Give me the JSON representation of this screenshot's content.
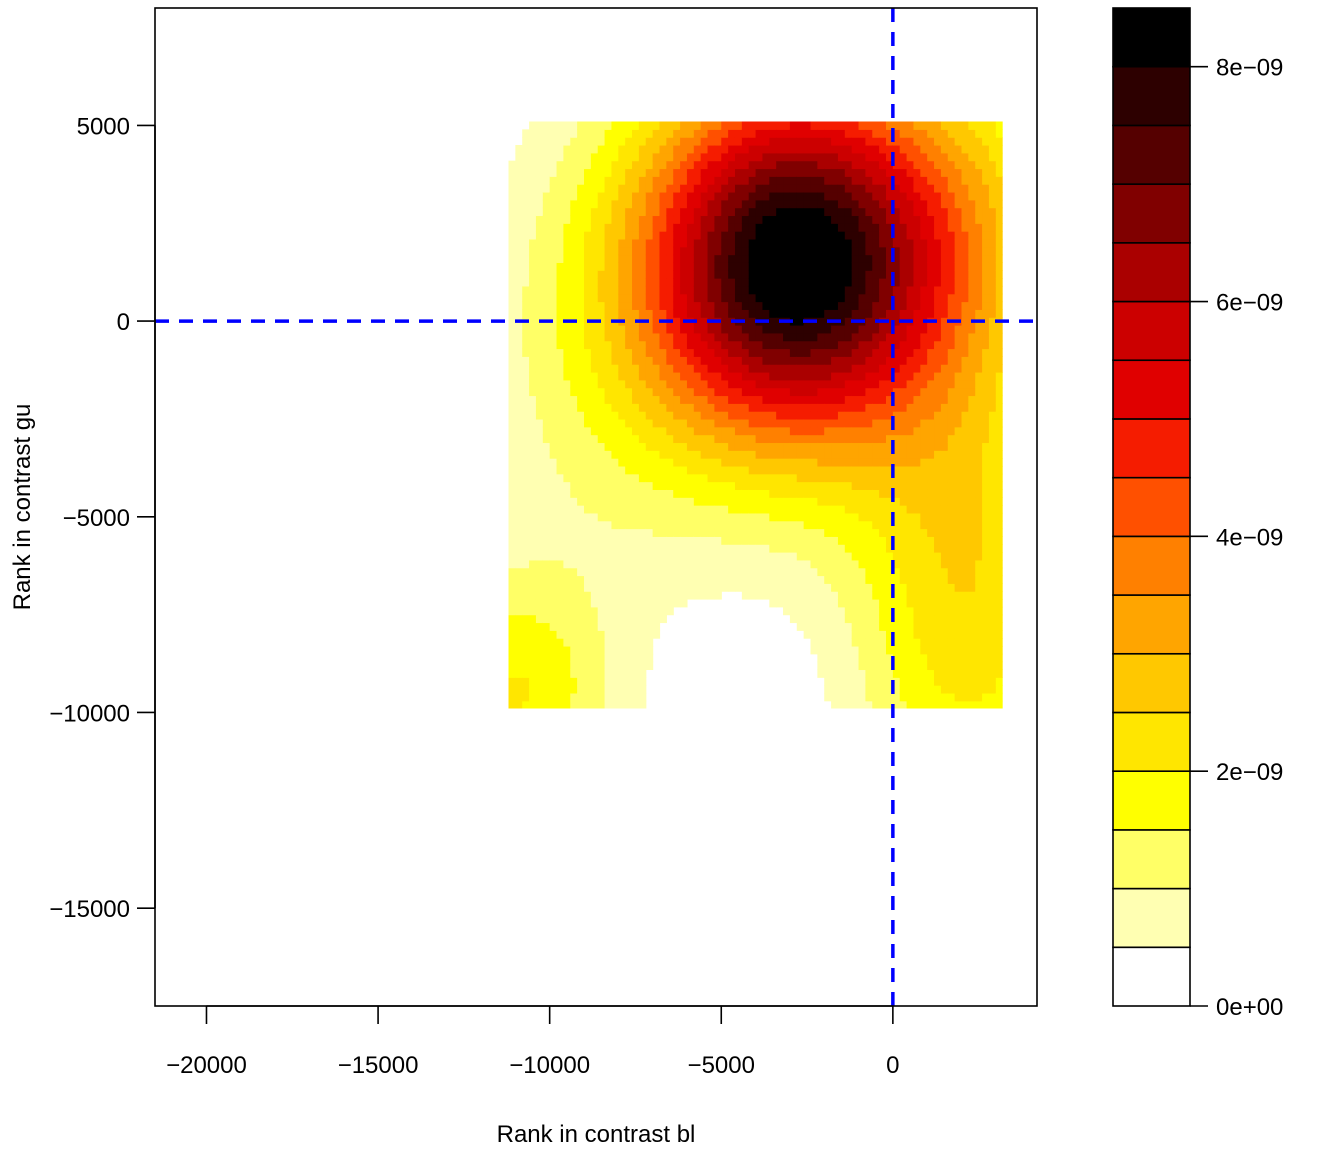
{
  "chart_data": {
    "type": "heatmap",
    "subtype": "filled-contour",
    "xlabel": "Rank in contrast bl",
    "ylabel": "Rank in contrast gu",
    "xlim": [
      -21500,
      4200
    ],
    "ylim": [
      -17500,
      8000
    ],
    "x_ticks": [
      -20000,
      -15000,
      -10000,
      -5000,
      0
    ],
    "x_tick_labels": [
      "−20000",
      "−15000",
      "−10000",
      "−5000",
      "0"
    ],
    "y_ticks": [
      -15000,
      -10000,
      -5000,
      0,
      5000
    ],
    "y_tick_labels": [
      "−15000",
      "−10000",
      "−5000",
      "0",
      "5000"
    ],
    "data_extent": {
      "x": [
        -11200,
        3200
      ],
      "y": [
        -9900,
        5100
      ]
    },
    "reference_lines": [
      {
        "orientation": "vertical",
        "value": 0,
        "color": "#0000ff",
        "style": "dashed"
      },
      {
        "orientation": "horizontal",
        "value": 0,
        "color": "#0000ff",
        "style": "dashed"
      }
    ],
    "density_peak": {
      "x": -2800,
      "y": 1400
    },
    "level_breaks": [
      0,
      6e-10,
      1.2e-09,
      1.8e-09,
      2.4e-09,
      3e-09,
      3.6e-09,
      4.2e-09,
      4.8e-09,
      5.4e-09,
      6e-09,
      6.6e-09,
      7.2e-09,
      7.8e-09,
      8.5e-09
    ],
    "level_colors": [
      "#ffffff",
      "#ffffb2",
      "#ffff66",
      "#ffff00",
      "#ffe600",
      "#ffc800",
      "#ffa500",
      "#ff8000",
      "#ff5000",
      "#f51c00",
      "#e00000",
      "#cc0000",
      "#aa0000",
      "#800000",
      "#550000",
      "#2d0000",
      "#000000"
    ],
    "colorbar": {
      "ticks": [
        0,
        2e-09,
        4e-09,
        6e-09,
        8e-09
      ],
      "tick_labels": [
        "0e+00",
        "2e−09",
        "4e−09",
        "6e−09",
        "8e−09"
      ]
    }
  }
}
